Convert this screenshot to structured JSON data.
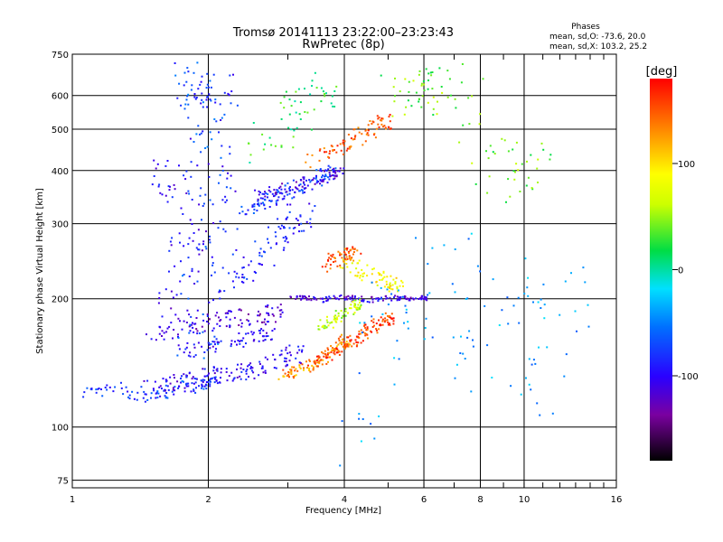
{
  "chart_data": {
    "type": "scatter",
    "title": "Tromsø 20141113 23:22:00–23:23:43",
    "subtitle": "RwPretec (8p)",
    "phases": {
      "heading": "Phases",
      "line_o": "mean, sd,O: -73.6, 20.0",
      "line_x": "mean, sd,X: 103.2, 25.2"
    },
    "xlabel": "Frequency [MHz]",
    "ylabel": "Stationary phase Virtual Height [km]",
    "x_scale": "log",
    "y_scale": "log",
    "xlim": [
      1,
      16
    ],
    "ylim": [
      72,
      750
    ],
    "x_ticks": [
      1,
      2,
      4,
      6,
      8,
      10,
      16
    ],
    "x_tick_labels": [
      "1",
      "2",
      "4",
      "6",
      "8",
      "10",
      "16"
    ],
    "y_ticks": [
      75,
      100,
      200,
      300,
      400,
      500,
      600,
      750
    ],
    "y_tick_labels": [
      "75",
      "100",
      "200",
      "300",
      "400",
      "500",
      "600",
      "750"
    ],
    "grid": true,
    "colorbar": {
      "label": "[deg]",
      "range": [
        -180,
        180
      ],
      "ticks": [
        -100,
        0,
        100
      ],
      "tick_labels": [
        "-100",
        "0",
        "100"
      ]
    },
    "traces": [
      {
        "x": [
          1.05,
          1.2,
          1.4,
          1.55,
          1.7,
          1.85,
          2.0
        ],
        "y": [
          118,
          123,
          120,
          118,
          123,
          125,
          128
        ],
        "phase": -80,
        "spread": 1.04
      },
      {
        "x": [
          1.5,
          1.6,
          1.75,
          1.9,
          2.05,
          2.2,
          2.4,
          2.6,
          2.85,
          3.1
        ],
        "y": [
          123,
          126,
          128,
          130,
          131,
          133,
          135,
          138,
          142,
          148
        ],
        "phase": -100,
        "spread": 1.05
      },
      {
        "x": [
          1.55,
          1.7,
          1.9,
          2.1,
          2.3,
          2.55,
          2.8
        ],
        "y": [
          165,
          170,
          175,
          178,
          180,
          182,
          185
        ],
        "phase": -115,
        "spread": 1.05
      },
      {
        "x": [
          1.75,
          1.9,
          2.1,
          2.4,
          2.7
        ],
        "y": [
          150,
          152,
          155,
          160,
          165
        ],
        "phase": -95,
        "spread": 1.04
      },
      {
        "x": [
          2.9,
          3.05,
          3.2,
          3.4,
          3.6,
          3.8,
          4.0
        ],
        "y": [
          132,
          134,
          136,
          140,
          145,
          152,
          160
        ],
        "phase": 130,
        "spread": 1.03
      },
      {
        "x": [
          3.4,
          3.6,
          3.8,
          4.0,
          4.2,
          4.4,
          4.6,
          4.8,
          5.0
        ],
        "y": [
          140,
          145,
          150,
          155,
          160,
          165,
          170,
          175,
          180
        ],
        "phase": 155,
        "spread": 1.03
      },
      {
        "x": [
          3.0,
          3.3,
          3.6,
          3.9,
          4.2,
          4.6,
          5.0,
          5.5,
          6.0
        ],
        "y": [
          200,
          200,
          199,
          201,
          200,
          199,
          200,
          201,
          200
        ],
        "phase": -110,
        "spread": 1.015
      },
      {
        "x": [
          3.5,
          3.7,
          3.9,
          4.1,
          4.3
        ],
        "y": [
          170,
          175,
          182,
          188,
          195
        ],
        "phase": 60,
        "spread": 1.03
      },
      {
        "x": [
          2.4,
          2.55,
          2.7,
          2.85,
          3.0,
          3.2,
          3.45,
          3.7
        ],
        "y": [
          320,
          330,
          340,
          350,
          358,
          365,
          378,
          395
        ],
        "phase": -80,
        "spread": 1.04
      },
      {
        "x": [
          2.5,
          2.8,
          3.1,
          3.5,
          3.9
        ],
        "y": [
          350,
          360,
          368,
          380,
          395
        ],
        "phase": -110,
        "spread": 1.03
      },
      {
        "x": [
          3.4,
          3.7,
          4.0,
          4.3,
          4.6,
          4.9
        ],
        "y": [
          420,
          440,
          460,
          480,
          500,
          520
        ],
        "phase": 150,
        "spread": 1.04
      },
      {
        "x": [
          4.0,
          4.3,
          4.6,
          4.9,
          5.2
        ],
        "y": [
          240,
          235,
          228,
          222,
          215
        ],
        "phase": 90,
        "spread": 1.04
      },
      {
        "x": [
          3.6,
          3.8,
          4.0,
          4.2
        ],
        "y": [
          240,
          245,
          250,
          255
        ],
        "phase": 150,
        "spread": 1.04
      },
      {
        "x": [
          1.85,
          1.9,
          1.95,
          2.0,
          2.02,
          1.92,
          1.88
        ],
        "y": [
          140,
          200,
          280,
          380,
          500,
          600,
          640
        ],
        "phase": -70,
        "spread": 1.12
      },
      {
        "x": [
          2.0,
          2.05,
          2.1,
          2.02,
          2.08
        ],
        "y": [
          160,
          240,
          330,
          460,
          620
        ],
        "phase": -90,
        "spread": 1.12
      },
      {
        "x": [
          1.6,
          1.7,
          1.8,
          1.75,
          1.65
        ],
        "y": [
          160,
          200,
          260,
          330,
          400
        ],
        "phase": -100,
        "spread": 1.1
      },
      {
        "x": [
          2.2,
          2.4,
          2.6,
          2.8,
          3.0,
          3.2
        ],
        "y": [
          210,
          230,
          250,
          270,
          290,
          310
        ],
        "phase": -90,
        "spread": 1.08
      },
      {
        "x": [
          2.6,
          2.9,
          3.2,
          3.5
        ],
        "y": [
          450,
          500,
          560,
          620
        ],
        "phase": 20,
        "spread": 1.1
      },
      {
        "x": [
          5.2,
          5.6,
          6.0,
          6.5,
          7.2,
          8.5,
          10.0
        ],
        "y": [
          580,
          600,
          620,
          640,
          600,
          380,
          420
        ],
        "phase": 40,
        "spread": 1.15
      },
      {
        "x": [
          4.5,
          5.0,
          5.5,
          6.5,
          7.5,
          9.0,
          11.0,
          12.0
        ],
        "y": [
          90,
          200,
          180,
          250,
          130,
          240,
          110,
          200
        ],
        "phase": -40,
        "spread": 1.2
      }
    ]
  }
}
